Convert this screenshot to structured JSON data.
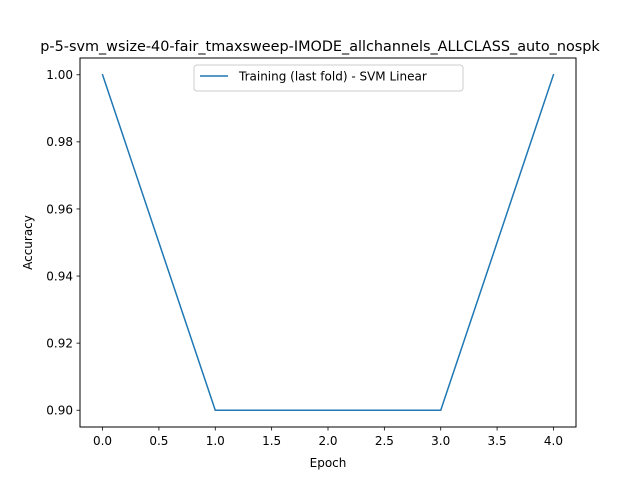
{
  "chart_data": {
    "type": "line",
    "title": "p-5-svm_wsize-40-fair_tmaxsweep-IMODE_allchannels_ALLCLASS_auto_nospk",
    "xlabel": "Epoch",
    "ylabel": "Accuracy",
    "xlim": [
      -0.2,
      4.2
    ],
    "ylim": [
      0.895,
      1.005
    ],
    "xticks": [
      0.0,
      0.5,
      1.0,
      1.5,
      2.0,
      2.5,
      3.0,
      3.5,
      4.0
    ],
    "xtick_labels": [
      "0.0",
      "0.5",
      "1.0",
      "1.5",
      "2.0",
      "2.5",
      "3.0",
      "3.5",
      "4.0"
    ],
    "yticks": [
      0.9,
      0.92,
      0.94,
      0.96,
      0.98,
      1.0
    ],
    "ytick_labels": [
      "0.90",
      "0.92",
      "0.94",
      "0.96",
      "0.98",
      "1.00"
    ],
    "grid": false,
    "legend_position": "upper center",
    "series": [
      {
        "name": "Training (last fold) - SVM Linear",
        "color": "#1f77b4",
        "x": [
          0,
          1,
          2,
          3,
          4
        ],
        "y": [
          1.0,
          0.9,
          0.9,
          0.9,
          1.0
        ]
      }
    ]
  }
}
